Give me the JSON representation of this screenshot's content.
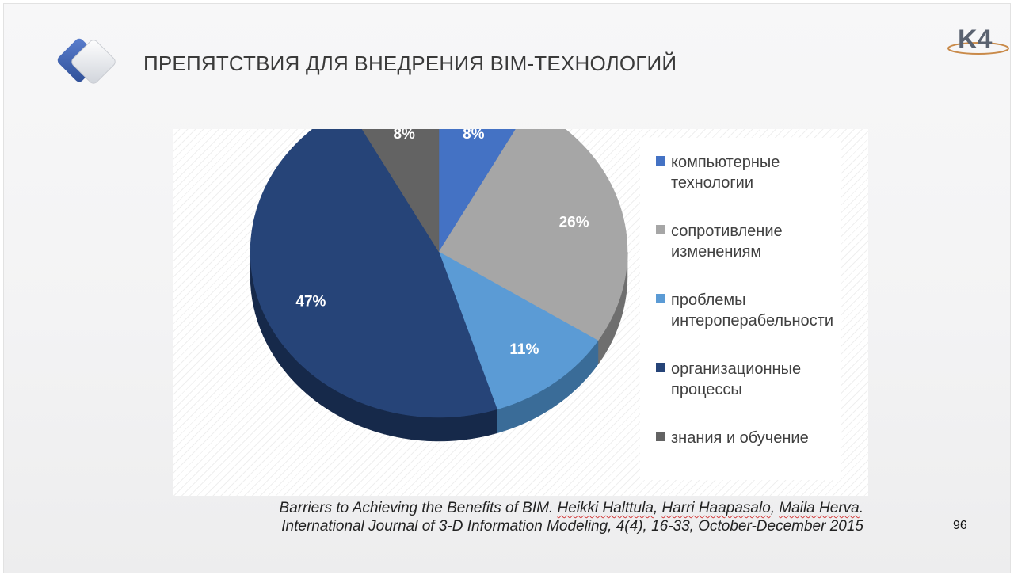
{
  "title": "ПРЕПЯТСТВИЯ ДЛЯ ВНЕДРЕНИЯ BIM-ТЕХНОЛОГИЙ",
  "logo_text": "K4",
  "page_number": "96",
  "citation": {
    "line1_prefix": "Barriers to Achieving the Benefits of BIM. ",
    "author1": "Heikki Halttula",
    "sep1": ", ",
    "author2": "Harri Haapasalo",
    "sep2": ", ",
    "author3": "Maila Herva",
    "line1_suffix": ".",
    "line2": "International Journal of 3-D Information Modeling, 4(4), 16-33, October-December 2015"
  },
  "colors": {
    "accent": "#4a6fb5",
    "slice_top": [
      "#4472c4",
      "#a6a6a6",
      "#5b9bd5",
      "#264478",
      "#636363"
    ],
    "slice_side": [
      "#2d4d8a",
      "#6f6f6f",
      "#3a6c98",
      "#16294a",
      "#3d3d3d"
    ]
  },
  "chart_data": {
    "type": "pie",
    "title": "",
    "series": [
      {
        "values": [
          8,
          26,
          11,
          47,
          8
        ],
        "data_labels": [
          "8%",
          "26%",
          "11%",
          "47%",
          "8%"
        ]
      }
    ],
    "categories": [
      "компьютерные технологии",
      "сопротивление изменениям",
      "проблемы интероперабельности",
      "организационные процессы",
      "знания и обучение"
    ],
    "legend_position": "right"
  },
  "legend": [
    {
      "label": "компьютерные технологии"
    },
    {
      "label": "сопротивление изменениям"
    },
    {
      "label": "проблемы интероперабельности"
    },
    {
      "label": "организационные процессы"
    },
    {
      "label": "знания и обучение"
    }
  ]
}
